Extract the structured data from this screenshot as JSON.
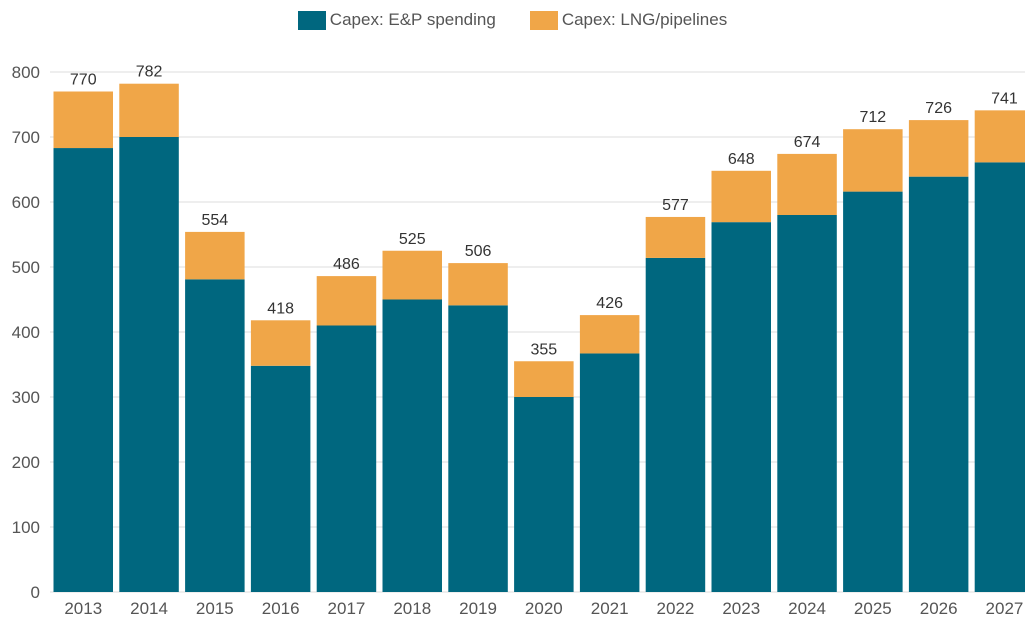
{
  "legend": {
    "series0": "Capex: E&P spending",
    "series1": "Capex: LNG/pipelines"
  },
  "colors": {
    "ep": "#00677F",
    "lng": "#F0A648",
    "grid": "#dddddd",
    "axis_text": "#555555"
  },
  "chart_data": {
    "type": "bar",
    "stacked": true,
    "categories": [
      "2013",
      "2014",
      "2015",
      "2016",
      "2017",
      "2018",
      "2019",
      "2020",
      "2021",
      "2022",
      "2023",
      "2024",
      "2025",
      "2026",
      "2027"
    ],
    "series": [
      {
        "name": "Capex: E&P spending",
        "values": [
          683,
          700,
          481,
          348,
          410,
          450,
          441,
          300,
          367,
          514,
          569,
          580,
          616,
          639,
          661
        ]
      },
      {
        "name": "Capex: LNG/pipelines",
        "values": [
          87,
          82,
          73,
          70,
          76,
          75,
          65,
          55,
          59,
          63,
          79,
          94,
          96,
          87,
          80
        ]
      }
    ],
    "totals": [
      770,
      782,
      554,
      418,
      486,
      525,
      506,
      355,
      426,
      577,
      648,
      674,
      712,
      726,
      741
    ],
    "ylim": [
      0,
      800
    ],
    "yticks": [
      0,
      100,
      200,
      300,
      400,
      500,
      600,
      700,
      800
    ],
    "grid": true,
    "legend_position": "top-center",
    "title": "",
    "xlabel": "",
    "ylabel": ""
  }
}
